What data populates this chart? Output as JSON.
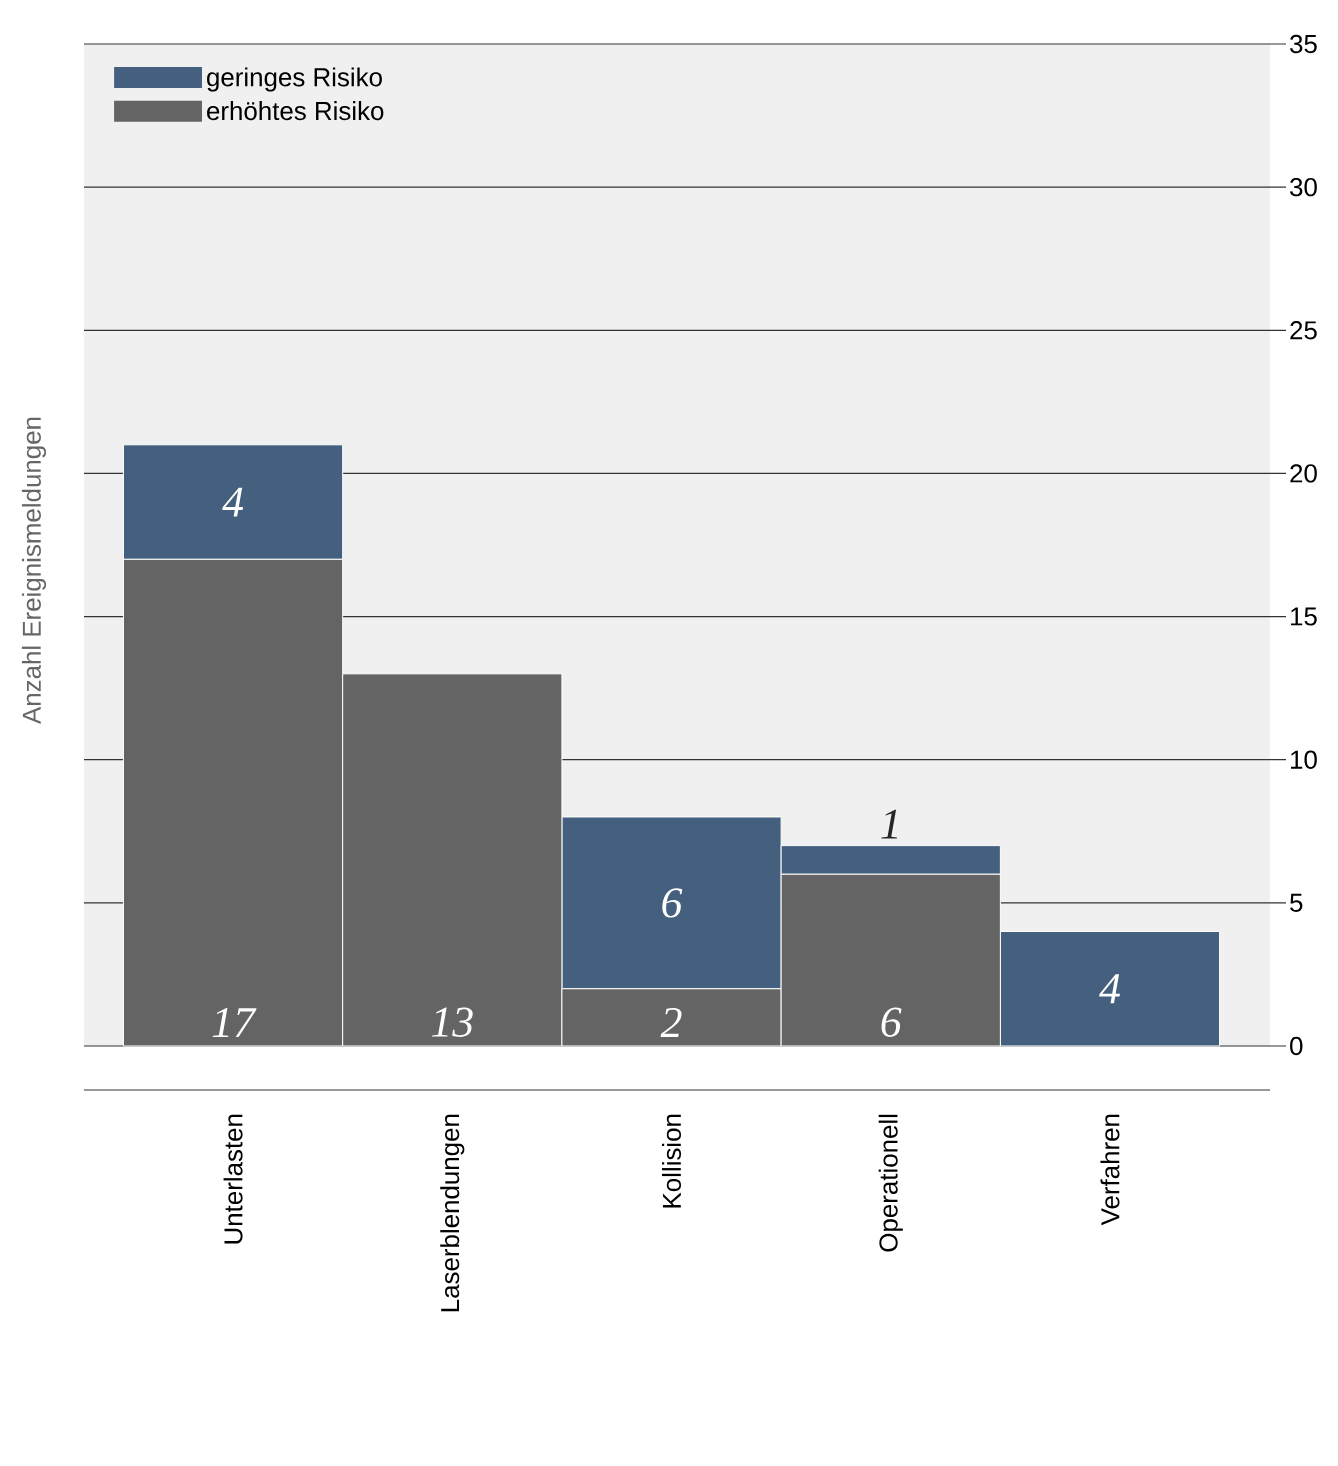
{
  "chart_data": {
    "type": "bar",
    "stacked": true,
    "ylabel": "Anzahl Ereignismeldungen",
    "categories": [
      "Unterlasten",
      "Laserblendungen",
      "Kollision",
      "Operationell",
      "Verfahren"
    ],
    "series": [
      {
        "name": "erhöhtes Risiko",
        "color": "#646464",
        "values": [
          17,
          13,
          2,
          6,
          0
        ],
        "value_labels": [
          "17",
          "13",
          "2",
          "6",
          null
        ]
      },
      {
        "name": "geringes Risiko",
        "color": "#45607f",
        "values": [
          4,
          0,
          6,
          1,
          4
        ],
        "value_labels": [
          "4",
          null,
          "6",
          "1",
          "4"
        ]
      }
    ],
    "ylim": [
      0,
      35
    ],
    "yticks": [
      0,
      5,
      10,
      15,
      20,
      25,
      30,
      35
    ],
    "grid": "y",
    "legend": "top left"
  }
}
